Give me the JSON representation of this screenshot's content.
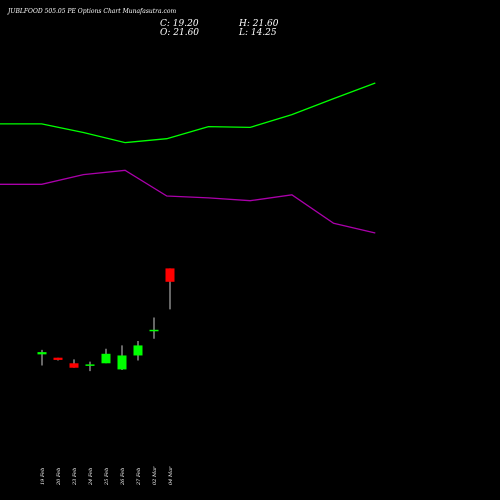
{
  "header": {
    "title": "JUBLFOOD 505.05 PE Options Chart Munafasutra.com",
    "close": "C: 19.20",
    "open": "O: 21.60",
    "high": "H: 21.60",
    "low": "L: 14.25"
  },
  "chart_data": {
    "type": "candlestick",
    "title": "JUBLFOOD 505.05 PE Options Chart Munafasutra.com",
    "categories": [
      "19 Feb",
      "20 Feb",
      "23 Feb",
      "24 Feb",
      "25 Feb",
      "26 Feb",
      "27 Feb",
      "02 Mar",
      "04 Mar"
    ],
    "candles": [
      {
        "open": 6.2,
        "high": 7.0,
        "low": 4.2,
        "close": 6.6,
        "direction": "up"
      },
      {
        "open": 5.6,
        "high": 5.6,
        "low": 5.1,
        "close": 5.2,
        "direction": "down"
      },
      {
        "open": 4.6,
        "high": 5.3,
        "low": 3.8,
        "close": 3.8,
        "direction": "down"
      },
      {
        "open": 4.2,
        "high": 4.9,
        "low": 3.2,
        "close": 4.4,
        "direction": "up"
      },
      {
        "open": 4.6,
        "high": 7.2,
        "low": 4.6,
        "close": 6.3,
        "direction": "up"
      },
      {
        "open": 3.5,
        "high": 7.8,
        "low": 3.4,
        "close": 6.0,
        "direction": "up"
      },
      {
        "open": 6.0,
        "high": 8.6,
        "low": 5.1,
        "close": 7.8,
        "direction": "up"
      },
      {
        "open": 10.4,
        "high": 12.8,
        "low": 9.0,
        "close": 10.6,
        "direction": "up"
      },
      {
        "open": 21.6,
        "high": 21.6,
        "low": 14.25,
        "close": 19.2,
        "direction": "down"
      }
    ],
    "ylim": [
      2.5,
      24
    ],
    "upper_band": {
      "color": "#00ff00",
      "x_values": [
        0,
        1,
        2,
        3,
        4,
        5,
        6,
        7,
        8,
        9
      ],
      "values": [
        28.0,
        28.0,
        25.8,
        23.2,
        24.2,
        27.3,
        27.1,
        30.4,
        34.5,
        38.5
      ]
    },
    "lower_band": {
      "color": "#aa00aa",
      "x_values": [
        0,
        1,
        2,
        3,
        4,
        5,
        6,
        7,
        8,
        9
      ],
      "values": [
        12.5,
        12.5,
        15.0,
        16.1,
        9.5,
        9.0,
        8.3,
        9.8,
        2.5,
        0.0
      ]
    },
    "colors": {
      "up": "#00ff00",
      "down": "#ff0000",
      "wick": "#ffffff",
      "background": "#000000",
      "text": "#ffffff"
    }
  }
}
